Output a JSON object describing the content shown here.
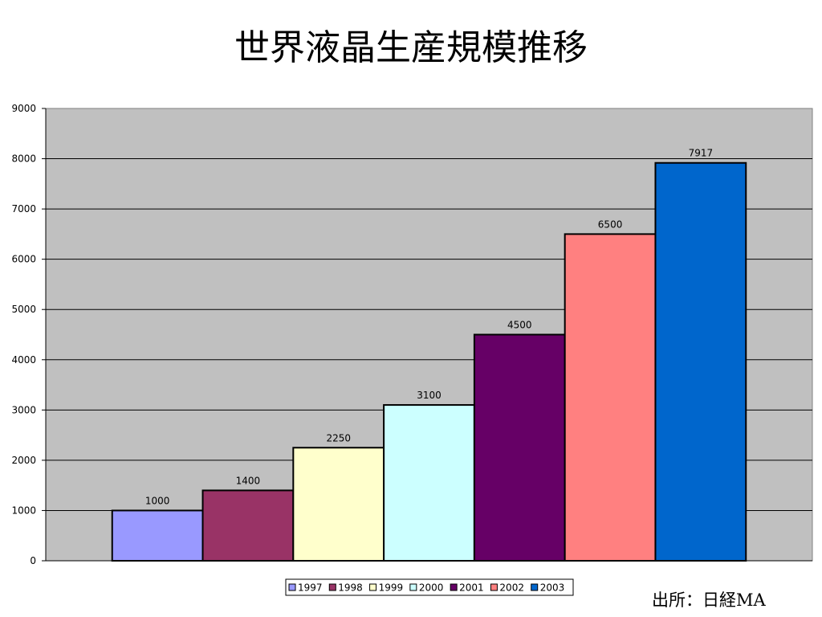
{
  "title": "世界液晶生産規模推移",
  "source_note": "出所：日経MA",
  "chart_data": {
    "type": "bar",
    "title": "世界液晶生産規模推移",
    "xlabel": "",
    "ylabel": "",
    "ylim": [
      0,
      9000
    ],
    "yticks": [
      0,
      1000,
      2000,
      3000,
      4000,
      5000,
      6000,
      7000,
      8000,
      9000
    ],
    "grid": true,
    "legend_position": "bottom",
    "plot_background": "#c0c0c0",
    "series": [
      {
        "name": "1997",
        "values": [
          1000
        ],
        "color": "#9999ff"
      },
      {
        "name": "1998",
        "values": [
          1400
        ],
        "color": "#993366"
      },
      {
        "name": "1999",
        "values": [
          2250
        ],
        "color": "#ffffcc"
      },
      {
        "name": "2000",
        "values": [
          3100
        ],
        "color": "#ccffff"
      },
      {
        "name": "2001",
        "values": [
          4500
        ],
        "color": "#660066"
      },
      {
        "name": "2002",
        "values": [
          6500
        ],
        "color": "#ff8080"
      },
      {
        "name": "2003",
        "values": [
          7917
        ],
        "color": "#0066cc"
      }
    ],
    "data_labels": [
      "1000",
      "1400",
      "2250",
      "3100",
      "4500",
      "6500",
      "7917"
    ]
  }
}
